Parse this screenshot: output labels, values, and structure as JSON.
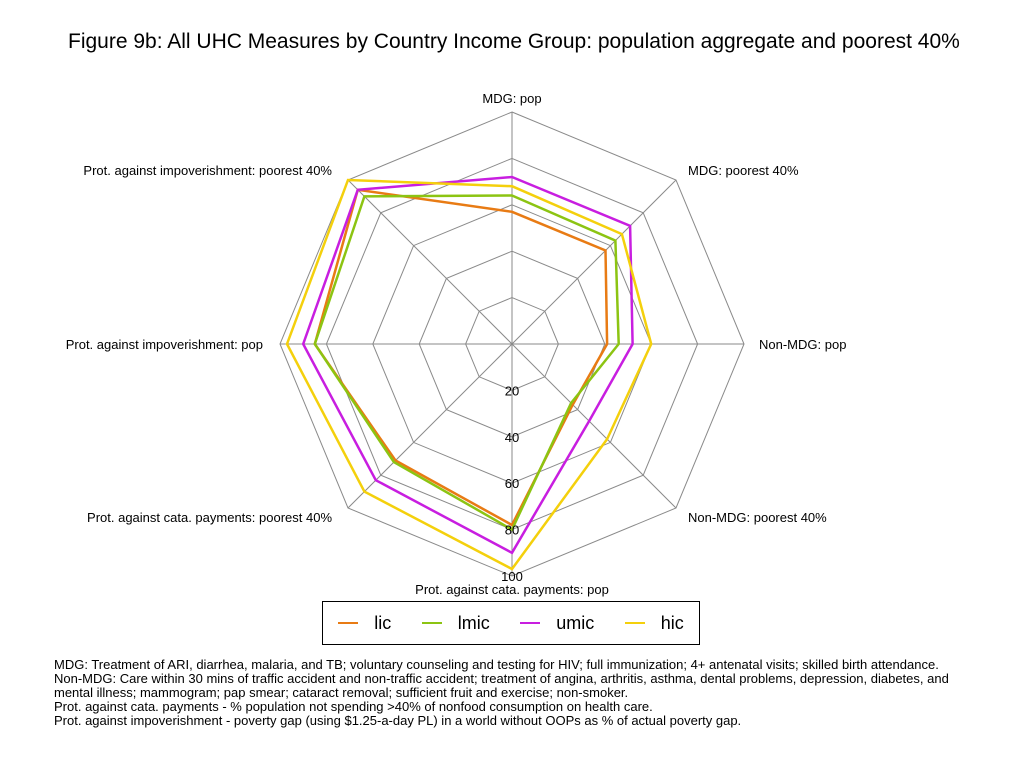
{
  "title": "Figure 9b:  All UHC Measures by Country Income Group: population aggregate and poorest 40%",
  "chart_data": {
    "type": "radar",
    "axes": [
      "MDG: pop",
      "MDG: poorest 40%",
      "Non-MDG: pop",
      "Non-MDG: poorest 40%",
      "Prot. against cata. payments: pop",
      "Prot. against cata. payments: poorest 40%",
      "Prot. against impoverishment: pop",
      "Prot. against impoverishment: poorest 40%"
    ],
    "radial_ticks": [
      "20",
      "40",
      "60",
      "80",
      "100"
    ],
    "rlim": [
      0,
      100
    ],
    "grid": true,
    "legend_position": "bottom",
    "series": [
      {
        "name": "lic",
        "color": "#e87b14",
        "values": [
          57,
          57,
          41,
          37,
          78,
          71,
          85,
          94
        ]
      },
      {
        "name": "lmic",
        "color": "#8cc412",
        "values": [
          64,
          63,
          46,
          36,
          80,
          72,
          85,
          90
        ]
      },
      {
        "name": "umic",
        "color": "#c81ee0",
        "values": [
          72,
          72,
          52,
          47,
          90,
          83,
          90,
          94
        ]
      },
      {
        "name": "hic",
        "color": "#f4d00c",
        "values": [
          68,
          67,
          60,
          58,
          97,
          90,
          97,
          100
        ]
      }
    ]
  },
  "notes": [
    "MDG: Treatment of ARI, diarrhea, malaria, and TB; voluntary counseling and testing for HIV; full immunization; 4+ antenatal visits; skilled birth attendance.",
    "Non-MDG: Care within 30 mins of traffic accident and non-traffic accident; treatment of angina, arthritis, asthma, dental problems, depression, diabetes, and mental illness; mammogram; pap smear; cataract removal; sufficient fruit and exercise; non-smoker.",
    "Prot. against cata. payments - % population not spending >40% of nonfood consumption on health care.",
    "Prot. against impoverishment - poverty gap (using $1.25-a-day PL) in a world without OOPs as % of actual poverty gap."
  ]
}
